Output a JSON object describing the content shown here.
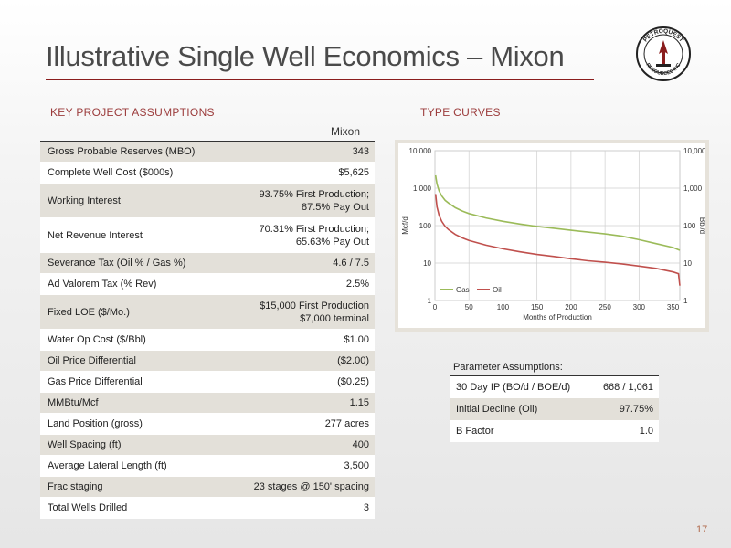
{
  "slide": {
    "title": "Illustrative Single Well Economics – Mixon",
    "page_number": "17"
  },
  "logo": {
    "text_top": "PETROQUEST",
    "text_bottom": "RESOURCES INC"
  },
  "assumptions": {
    "heading": "KEY PROJECT ASSUMPTIONS",
    "column_header": "Mixon",
    "rows": [
      {
        "label": "Gross Probable Reserves (MBO)",
        "value": "343"
      },
      {
        "label": "Complete Well Cost ($000s)",
        "value": "$5,625"
      },
      {
        "label": "Working Interest",
        "value": "93.75% First Production;",
        "value2": "87.5% Pay Out"
      },
      {
        "label": "Net Revenue Interest",
        "value": "70.31% First Production;",
        "value2": "65.63% Pay Out"
      },
      {
        "label": "Severance Tax (Oil % / Gas %)",
        "value": "4.6 / 7.5"
      },
      {
        "label": "Ad Valorem Tax (% Rev)",
        "value": "2.5%"
      },
      {
        "label": "Fixed LOE ($/Mo.)",
        "value": "$15,000 First Production",
        "value2": "$7,000 terminal"
      },
      {
        "label": "Water Op Cost ($/Bbl)",
        "value": "$1.00"
      },
      {
        "label": "Oil Price Differential",
        "value": "($2.00)"
      },
      {
        "label": "Gas Price Differential",
        "value": "($0.25)"
      },
      {
        "label": "MMBtu/Mcf",
        "value": "1.15"
      },
      {
        "label": "Land Position (gross)",
        "value": "277 acres"
      },
      {
        "label": "Well Spacing (ft)",
        "value": "400"
      },
      {
        "label": "Average Lateral Length (ft)",
        "value": "3,500"
      },
      {
        "label": "Frac staging",
        "value": "23 stages @ 150' spacing"
      },
      {
        "label": "Total Wells Drilled",
        "value": "3"
      }
    ]
  },
  "type_curves": {
    "heading": "TYPE CURVES"
  },
  "parameters": {
    "title": "Parameter Assumptions:",
    "rows": [
      {
        "label": "30 Day IP (BO/d / BOE/d)",
        "value": "668 / 1,061"
      },
      {
        "label": "Initial Decline (Oil)",
        "value": "97.75%"
      },
      {
        "label": "B Factor",
        "value": "1.0"
      }
    ]
  },
  "chart_data": {
    "type": "line",
    "title": "",
    "xlabel": "Months of Production",
    "ylabel_left": "Mcf/d",
    "ylabel_right": "Bbl/d",
    "xlim": [
      0,
      360
    ],
    "ylim": [
      1,
      10000
    ],
    "y_scale": "log",
    "x_ticks": [
      "0",
      "50",
      "100",
      "150",
      "200",
      "250",
      "300",
      "350"
    ],
    "y_ticks_left": [
      "10,000",
      "1,000",
      "100",
      "10",
      "1"
    ],
    "y_ticks_right": [
      "10,000",
      "1,000",
      "100",
      "10",
      "1"
    ],
    "grid": true,
    "legend_position": "bottom-left",
    "series": [
      {
        "name": "Gas",
        "color": "#9bbb59",
        "x": [
          1,
          3,
          6,
          10,
          15,
          20,
          30,
          40,
          50,
          75,
          100,
          125,
          150,
          175,
          200,
          225,
          250,
          275,
          300,
          325,
          350,
          360
        ],
        "y": [
          2200,
          1300,
          850,
          620,
          470,
          400,
          300,
          245,
          210,
          160,
          130,
          110,
          95,
          85,
          75,
          67,
          60,
          52,
          42,
          33,
          26,
          22
        ]
      },
      {
        "name": "Oil",
        "color": "#c0504d",
        "x": [
          1,
          3,
          6,
          10,
          15,
          20,
          30,
          40,
          50,
          75,
          100,
          125,
          150,
          175,
          200,
          225,
          250,
          275,
          300,
          325,
          350,
          358,
          360
        ],
        "y": [
          700,
          320,
          190,
          130,
          95,
          78,
          58,
          47,
          40,
          30,
          24,
          20,
          17,
          15,
          13,
          11.5,
          10.5,
          9.5,
          8.3,
          7.2,
          5.8,
          5.2,
          2.5
        ]
      }
    ]
  }
}
